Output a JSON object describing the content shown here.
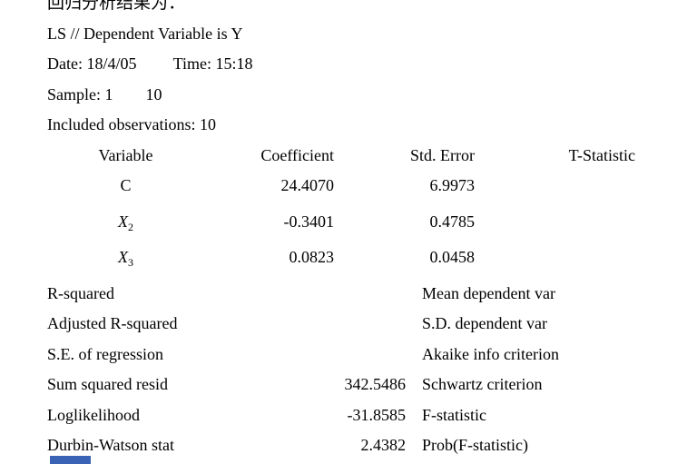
{
  "document": {
    "intro_cn": "回归分析结果为：",
    "header_lines": [
      "LS // Dependent Variable is Y",
      "Date: 18/4/05         Time: 15:18",
      "Sample: 1        10",
      "Included observations: 10"
    ]
  },
  "coef_table": {
    "headers": [
      "Variable",
      "Coefficient",
      "Std. Error",
      "T-Statistic"
    ],
    "rows": [
      {
        "var_base": "C",
        "var_sub": "",
        "coefficient": "24.4070",
        "std_error": "6.9973",
        "t_statistic": ""
      },
      {
        "var_base": "X",
        "var_sub": "2",
        "coefficient": "-0.3401",
        "std_error": "0.4785",
        "t_statistic": ""
      },
      {
        "var_base": "X",
        "var_sub": "3",
        "coefficient": "0.0823",
        "std_error": "0.0458",
        "t_statistic": ""
      }
    ]
  },
  "stats": {
    "rows": [
      {
        "label": "R-squared",
        "value": "",
        "right_label": "Mean dependent var"
      },
      {
        "label": "Adjusted R-squared",
        "value": "",
        "right_label": "S.D. dependent var"
      },
      {
        "label": "S.E. of regression",
        "value": "",
        "right_label": "Akaike info criterion"
      },
      {
        "label": "Sum squared resid",
        "value": "342.5486",
        "right_label": "Schwartz criterion"
      },
      {
        "label": "Loglikelihood",
        "value": "-31.8585",
        "right_label": "F-statistic"
      },
      {
        "label": "Durbin-Watson stat",
        "value": "2.4382",
        "right_label": "Prob(F-statistic)"
      }
    ]
  },
  "colors": {
    "text": "#000000",
    "background": "#ffffff",
    "blue_element": "#3a62b5"
  }
}
